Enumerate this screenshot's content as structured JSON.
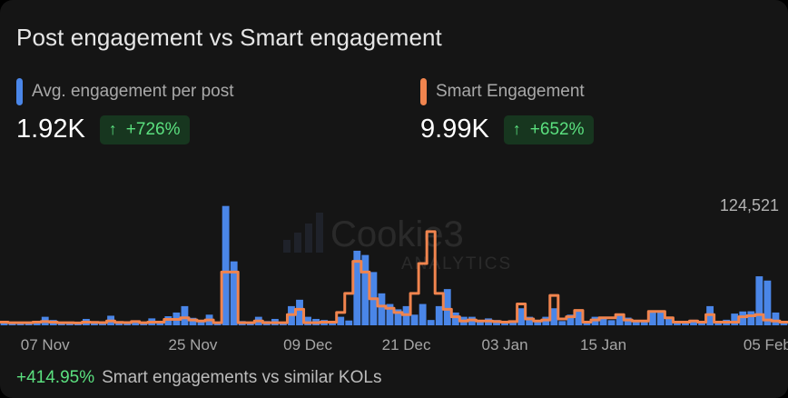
{
  "card": {
    "title": "Post engagement vs Smart engagement",
    "footer": {
      "change": "+414.95%",
      "text": "Smart engagements vs similar KOLs"
    }
  },
  "metrics": [
    {
      "label": "Avg. engagement per post",
      "value": "1.92K",
      "change": "+726%",
      "color": "#4a86e8",
      "arrow": "↑"
    },
    {
      "label": "Smart Engagement",
      "value": "9.99K",
      "change": "+652%",
      "color": "#f0844e",
      "arrow": "↑"
    }
  ],
  "watermark": {
    "brand": "Cookie3",
    "sub": "ANALYTICS"
  },
  "chart_data": {
    "type": "bar",
    "max_label": "124,521",
    "x_tick_labels": [
      "07 Nov",
      "25 Nov",
      "09 Dec",
      "21 Dec",
      "03 Jan",
      "15 Jan",
      "05 Feb"
    ],
    "x_tick_index": [
      5,
      23,
      37,
      49,
      61,
      73,
      93
    ],
    "ylim": [
      0,
      124521
    ],
    "series": [
      {
        "name": "Avg. engagement per post",
        "kind": "bar",
        "color": "#4a86e8",
        "values": [
          3000,
          2500,
          2800,
          2000,
          4000,
          8000,
          5000,
          3000,
          2500,
          2200,
          6000,
          3500,
          2800,
          9000,
          3000,
          2600,
          4500,
          2400,
          6500,
          3200,
          8500,
          12000,
          18000,
          7000,
          4000,
          10000,
          3500,
          112000,
          60000,
          4000,
          3000,
          8000,
          4000,
          6000,
          3200,
          18000,
          24000,
          8000,
          6000,
          5000,
          3500,
          8000,
          4500,
          70000,
          66000,
          50000,
          30000,
          20000,
          15000,
          18000,
          10000,
          20000,
          5000,
          18000,
          34000,
          12000,
          8000,
          8000,
          4500,
          6500,
          5000,
          3200,
          4000,
          16000,
          8000,
          5000,
          8000,
          16000,
          4000,
          10000,
          13000,
          3200,
          8000,
          6500,
          4800,
          10000,
          7200,
          4000,
          3400,
          12000,
          13500,
          8000,
          4200,
          2800,
          5200,
          3000,
          18000,
          4000,
          5200,
          11000,
          13000,
          13200,
          46000,
          42000,
          12000,
          3600
        ]
      },
      {
        "name": "Smart Engagement",
        "kind": "line",
        "color": "#f0844e",
        "values": [
          3000,
          2500,
          2500,
          2500,
          3000,
          3500,
          3000,
          2500,
          2500,
          2200,
          3000,
          2800,
          2600,
          4000,
          2800,
          2600,
          3500,
          2500,
          3000,
          3000,
          5500,
          5500,
          7000,
          5000,
          4000,
          5000,
          2500,
          50000,
          50000,
          2500,
          2500,
          4000,
          2500,
          2500,
          2500,
          10000,
          15000,
          2500,
          2500,
          3000,
          3000,
          12000,
          30000,
          60000,
          50000,
          25000,
          18000,
          16000,
          12000,
          10000,
          30000,
          58000,
          88000,
          30000,
          15000,
          8000,
          4000,
          5000,
          4000,
          4000,
          3500,
          3000,
          3500,
          20000,
          6000,
          4000,
          5000,
          28000,
          6000,
          8000,
          14000,
          3000,
          5000,
          7000,
          7000,
          10000,
          5000,
          4000,
          4000,
          13000,
          13000,
          7000,
          3000,
          3000,
          4000,
          3000,
          10000,
          3000,
          3000,
          3000,
          8000,
          9000,
          10000,
          5000,
          4000,
          3000
        ]
      }
    ]
  }
}
